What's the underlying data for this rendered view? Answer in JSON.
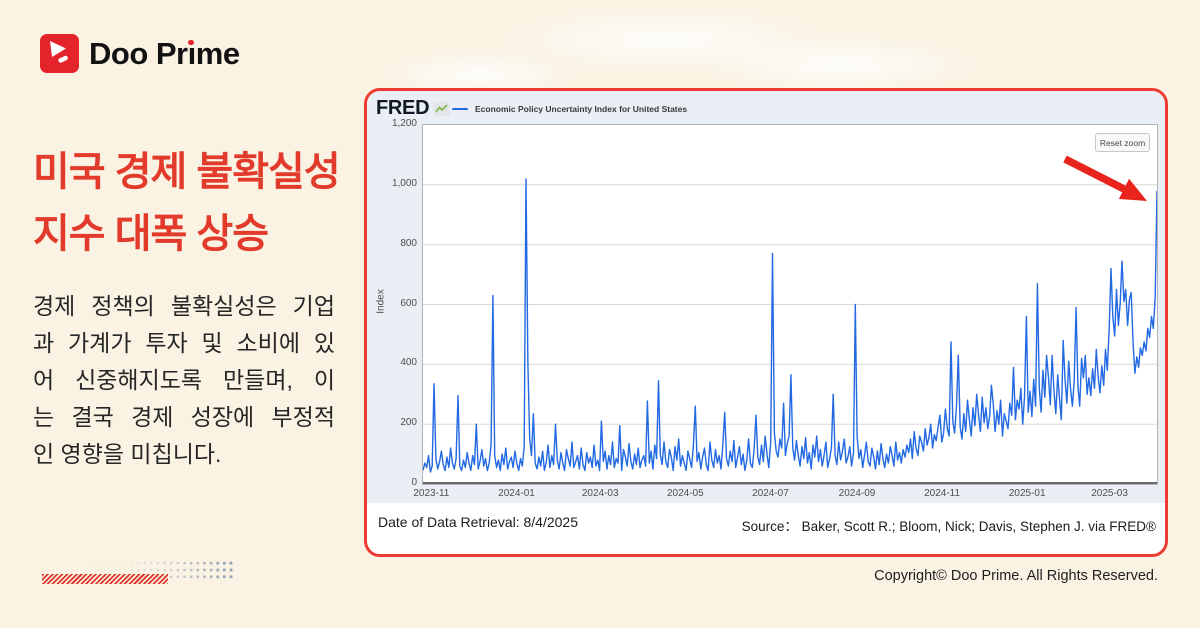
{
  "brand": {
    "logo_text": "Doo Prime",
    "logo_text_parts": [
      "Doo Pr",
      "ı",
      "me"
    ]
  },
  "left": {
    "heading_lines": [
      "미국 경제 불확실성",
      "지수 대폭 상승"
    ],
    "body_lines": [
      "경제 정책의 불확실성은 기업",
      "과 가계가 투자 및 소비에 있",
      "어 신중해지도록 만들며, 이",
      "는 결국 경제 성장에 부정적",
      "인 영향을 미칩니다."
    ]
  },
  "card": {
    "fred_logo": "FRED",
    "legend_label": "Economic Policy Uncertainty Index for United States",
    "reset_zoom": "Reset zoom",
    "retrieval": "Date of Data Retrieval: 8/4/2025",
    "source": "Source：  Baker, Scott R.; Bloom, Nick; Davis, Stephen J. via FRED®"
  },
  "footer": {
    "copyright": "Copyright© Doo Prime. All Rights Reserved."
  },
  "colors": {
    "accent_red": "#E23B2C",
    "chart_blue": "#2269E3",
    "background": "#FAF3E4"
  },
  "chart_data": {
    "type": "line",
    "title": "Economic Policy Uncertainty Index for United States",
    "ylabel": "Index",
    "ylim": [
      0,
      1200
    ],
    "grid": true,
    "y_ticks": [
      "1,200",
      "1,000",
      "800",
      "600",
      "400",
      "200",
      "0"
    ],
    "x_ticks": [
      {
        "label": "2023-11",
        "pos": 0.0114
      },
      {
        "label": "2024-01",
        "pos": 0.1274
      },
      {
        "label": "2024-03",
        "pos": 0.2414
      },
      {
        "label": "2024-05",
        "pos": 0.3574
      },
      {
        "label": "2024-07",
        "pos": 0.4734
      },
      {
        "label": "2024-09",
        "pos": 0.5913
      },
      {
        "label": "2024-11",
        "pos": 0.7072
      },
      {
        "label": "2025-01",
        "pos": 0.8232
      },
      {
        "label": "2025-03",
        "pos": 0.9354
      }
    ],
    "x_range": [
      "2023-10-26",
      "2025-04-04"
    ],
    "values": [
      45,
      70,
      55,
      95,
      40,
      60,
      335,
      85,
      50,
      75,
      110,
      65,
      45,
      90,
      55,
      120,
      70,
      50,
      85,
      295,
      60,
      45,
      80,
      55,
      105,
      70,
      45,
      95,
      65,
      200,
      50,
      75,
      115,
      60,
      85,
      45,
      70,
      130,
      630,
      95,
      55,
      80,
      45,
      100,
      65,
      120,
      50,
      75,
      90,
      55,
      110,
      70,
      45,
      85,
      60,
      125,
      1020,
      400,
      150,
      95,
      235,
      70,
      50,
      90,
      60,
      110,
      45,
      75,
      130,
      55,
      95,
      65,
      200,
      80,
      50,
      105,
      70,
      45,
      115,
      85,
      60,
      140,
      55,
      75,
      95,
      50,
      120,
      65,
      45,
      105,
      70,
      90,
      55,
      130,
      60,
      80,
      45,
      210,
      75,
      110,
      50,
      95,
      65,
      140,
      55,
      85,
      70,
      195,
      45,
      115,
      90,
      60,
      135,
      75,
      50,
      100,
      65,
      120,
      55,
      80,
      95,
      60,
      277,
      70,
      110,
      50,
      130,
      85,
      345,
      100,
      65,
      140,
      75,
      55,
      115,
      90,
      45,
      125,
      80,
      150,
      60,
      95,
      70,
      45,
      110,
      85,
      55,
      130,
      260,
      75,
      105,
      50,
      90,
      120,
      65,
      45,
      140,
      80,
      55,
      115,
      70,
      95,
      50,
      135,
      240,
      85,
      60,
      110,
      75,
      145,
      55,
      90,
      125,
      65,
      100,
      45,
      80,
      150,
      70,
      55,
      115,
      230,
      90,
      65,
      130,
      75,
      160,
      100,
      55,
      140,
      770,
      170,
      110,
      90,
      150,
      120,
      270,
      95,
      135,
      160,
      365,
      120,
      80,
      145,
      95,
      60,
      125,
      85,
      155,
      70,
      105,
      50,
      130,
      90,
      160,
      75,
      115,
      60,
      95,
      140,
      55,
      85,
      120,
      300,
      95,
      65,
      140,
      80,
      110,
      150,
      70,
      90,
      125,
      60,
      105,
      600,
      160,
      85,
      115,
      55,
      95,
      140,
      75,
      60,
      120,
      90,
      50,
      110,
      65,
      135,
      85,
      55,
      100,
      70,
      125,
      95,
      60,
      140,
      80,
      105,
      70,
      115,
      90,
      130,
      105,
      150,
      85,
      175,
      120,
      95,
      160,
      140,
      110,
      185,
      130,
      155,
      200,
      120,
      165,
      145,
      190,
      230,
      140,
      170,
      250,
      185,
      160,
      475,
      210,
      170,
      260,
      430,
      190,
      150,
      235,
      175,
      280,
      215,
      160,
      255,
      195,
      300,
      230,
      175,
      290,
      205,
      255,
      185,
      225,
      330,
      265,
      175,
      245,
      200,
      280,
      160,
      235,
      210,
      185,
      270,
      230,
      390,
      215,
      280,
      250,
      320,
      200,
      290,
      560,
      240,
      310,
      225,
      350,
      260,
      670,
      320,
      240,
      380,
      290,
      430,
      355,
      265,
      430,
      310,
      235,
      365,
      285,
      215,
      480,
      350,
      270,
      410,
      320,
      260,
      345,
      590,
      330,
      260,
      420,
      355,
      430,
      300,
      355,
      295,
      385,
      320,
      450,
      360,
      305,
      395,
      330,
      450,
      380,
      520,
      720,
      560,
      495,
      650,
      530,
      605,
      745,
      610,
      650,
      530,
      615,
      640,
      470,
      370,
      425,
      390,
      455,
      430,
      475,
      445,
      520,
      490,
      560,
      520,
      625,
      980
    ]
  }
}
